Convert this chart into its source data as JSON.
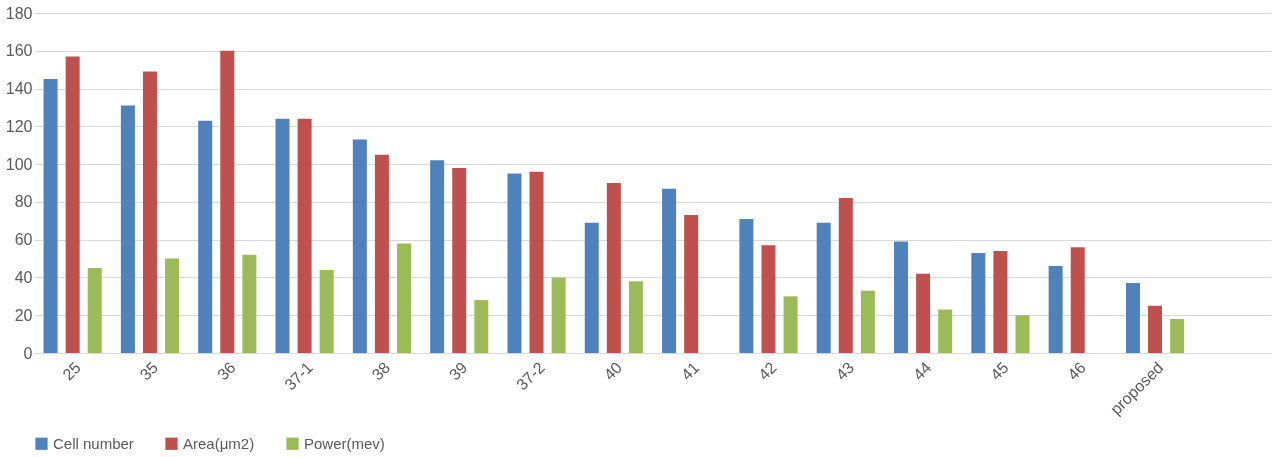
{
  "chart_data": {
    "type": "bar",
    "categories": [
      "25",
      "35",
      "36",
      "37-1",
      "38",
      "39",
      "37-2",
      "40",
      "41",
      "42",
      "43",
      "44",
      "45",
      "46",
      "proposed",
      null
    ],
    "series": [
      {
        "name": "Cell number",
        "color": "#4f81bd",
        "values": [
          145,
          131,
          123,
          124,
          113,
          102,
          95,
          69,
          87,
          71,
          69,
          59,
          53,
          46,
          37,
          null
        ]
      },
      {
        "name": "Area(μm2)",
        "color": "#c0504d",
        "values": [
          157,
          149,
          160,
          124,
          105,
          98,
          96,
          90,
          73,
          57,
          82,
          42,
          54,
          56,
          25,
          null
        ]
      },
      {
        "name": "Power(mev)",
        "color": "#9bbb59",
        "values": [
          45,
          50,
          52,
          44,
          58,
          28,
          40,
          38,
          null,
          30,
          33,
          23,
          20,
          null,
          18,
          null
        ]
      }
    ],
    "ylim": [
      0,
      180
    ],
    "yticks": [
      0,
      20,
      40,
      60,
      80,
      100,
      120,
      140,
      160,
      180
    ],
    "grid": "y",
    "legend": "bottom"
  }
}
